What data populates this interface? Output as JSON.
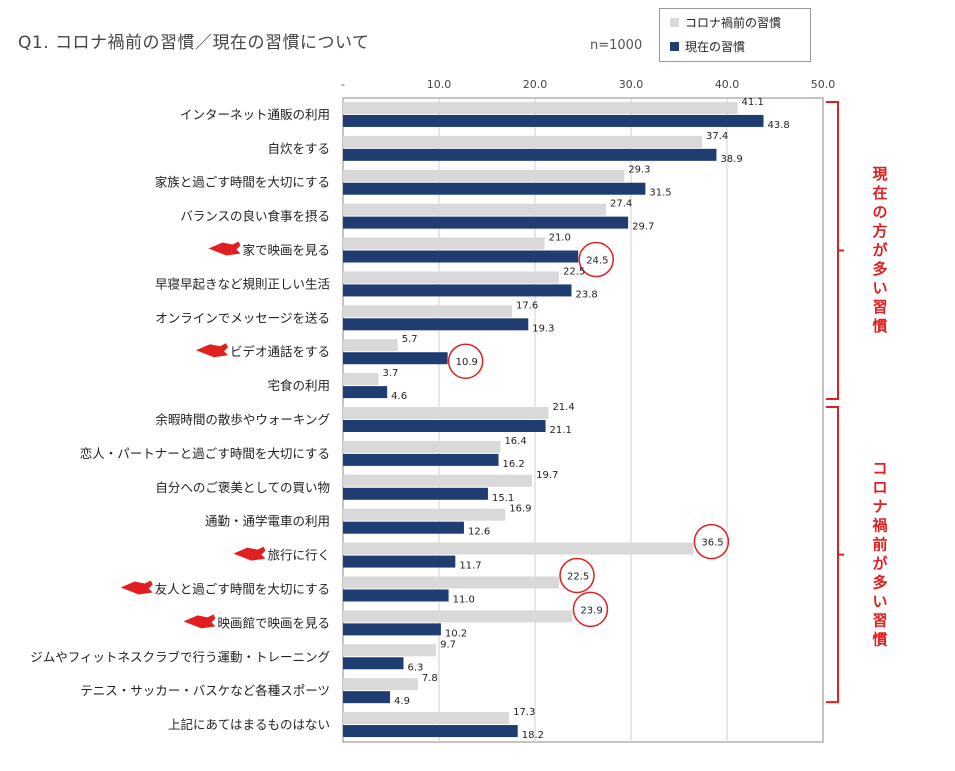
{
  "header": {
    "title": "Q1. コロナ禍前の習慣／現在の習慣について",
    "sample_size": "n=1000"
  },
  "legend": {
    "items": [
      {
        "label": "コロナ禍前の習慣",
        "color": "#d9d9d9"
      },
      {
        "label": "現在の習慣",
        "color": "#1f3d73"
      }
    ]
  },
  "brackets": [
    {
      "label": "現在の方が多い習慣",
      "color": "#e02020",
      "from_index": 0,
      "to_index": 8
    },
    {
      "label": "コロナ禍前が多い習慣",
      "color": "#e02020",
      "from_index": 9,
      "to_index": 16
    }
  ],
  "chart_data": {
    "type": "bar",
    "orientation": "horizontal",
    "categories": [
      "インターネット通販の利用",
      "自炊をする",
      "家族と過ごす時間を大切にする",
      "バランスの良い食事を摂る",
      "家で映画を見る",
      "早寝早起きなど規則正しい生活",
      "オンラインでメッセージを送る",
      "ビデオ通話をする",
      "宅食の利用",
      "余暇時間の散歩やウォーキング",
      "恋人・パートナーと過ごす時間を大切にする",
      "自分へのご褒美としての買い物",
      "通勤・通学電車の利用",
      "旅行に行く",
      "友人と過ごす時間を大切にする",
      "映画館で映画を見る",
      "ジムやフィットネスクラブで行う運動・トレーニング",
      "テニス・サッカー・バスケなど各種スポーツ",
      "上記にあてはまるものはない"
    ],
    "series": [
      {
        "name": "コロナ禍前の習慣",
        "color": "#d9d9d9",
        "values": [
          41.1,
          37.4,
          29.3,
          27.4,
          21.0,
          22.5,
          17.6,
          5.7,
          3.7,
          21.4,
          16.4,
          19.7,
          16.9,
          36.5,
          22.5,
          23.9,
          9.7,
          7.8,
          17.3
        ]
      },
      {
        "name": "現在の習慣",
        "color": "#1f3d73",
        "values": [
          43.8,
          38.9,
          31.5,
          29.7,
          24.5,
          23.8,
          19.3,
          10.9,
          4.6,
          21.1,
          16.2,
          15.1,
          12.6,
          11.7,
          11.0,
          10.2,
          6.3,
          4.9,
          18.2
        ]
      }
    ],
    "x_ticks": [
      "-",
      "10.0",
      "20.0",
      "30.0",
      "40.0",
      "50.0"
    ],
    "xlim": [
      0,
      50
    ],
    "grid": true,
    "legend_position": "top-right",
    "highlighted_categories": [
      4,
      7,
      13,
      14,
      15
    ],
    "circled_values": [
      {
        "category_index": 4,
        "series_index": 1
      },
      {
        "category_index": 7,
        "series_index": 1
      },
      {
        "category_index": 13,
        "series_index": 0
      },
      {
        "category_index": 14,
        "series_index": 0
      },
      {
        "category_index": 15,
        "series_index": 0
      }
    ]
  }
}
